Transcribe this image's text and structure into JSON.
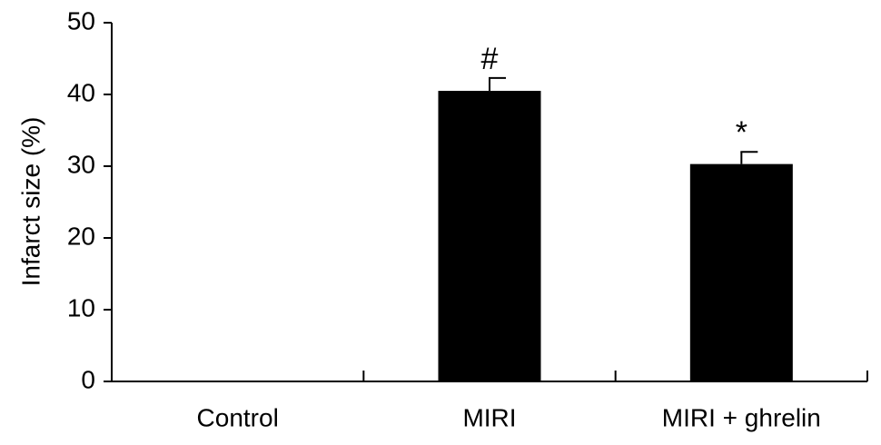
{
  "chart_data": {
    "type": "bar",
    "y_label": "Infarct size (%)",
    "categories": [
      "Control",
      "MIRI",
      "MIRI + ghrelin"
    ],
    "values": [
      0,
      40.5,
      30.3
    ],
    "errors": [
      0,
      1.8,
      1.7
    ],
    "value_annotations": [
      null,
      "#",
      "*"
    ],
    "color": "#000000",
    "ylim": [
      0,
      50
    ],
    "yticks": [
      0,
      10,
      20,
      30,
      40,
      50
    ],
    "grid": false
  }
}
